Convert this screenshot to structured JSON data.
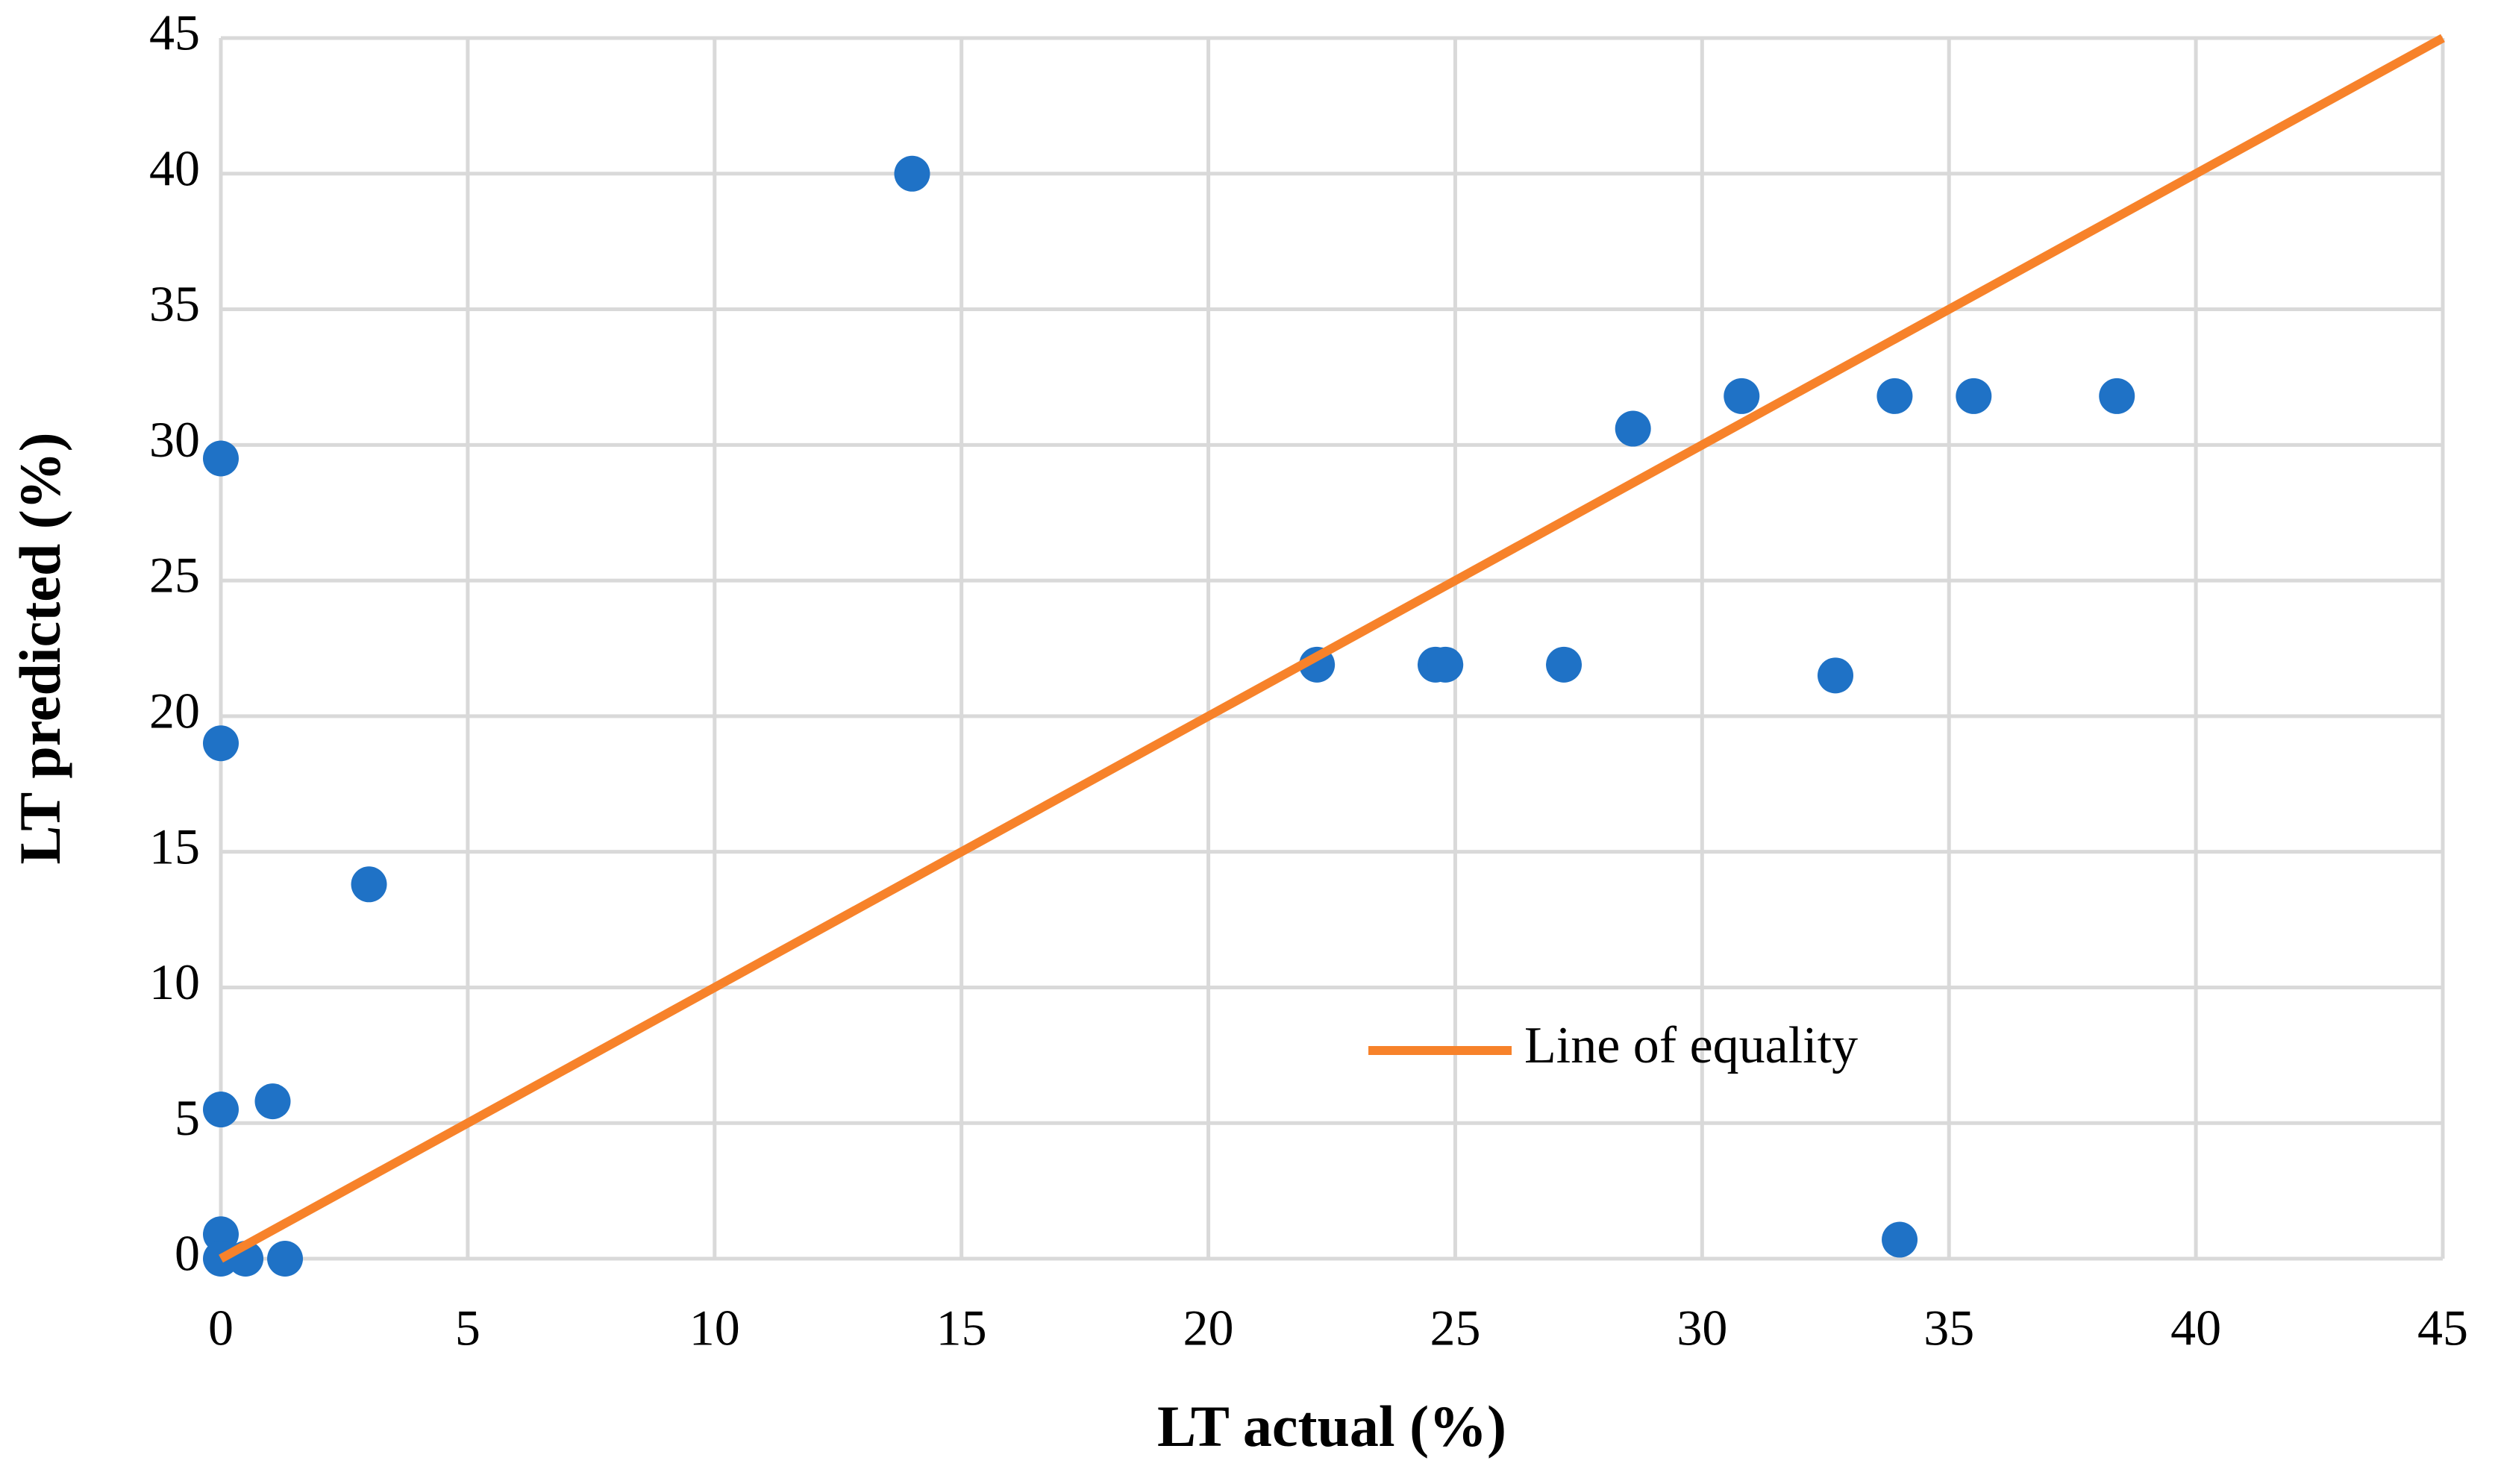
{
  "chart_data": {
    "type": "scatter",
    "x_label": "LT actual (%)",
    "y_label": "LT predicted (%)",
    "xlim": [
      0,
      45
    ],
    "ylim": [
      0,
      45
    ],
    "xticks": [
      0,
      5,
      10,
      15,
      20,
      25,
      30,
      35,
      40,
      45
    ],
    "yticks": [
      0,
      5,
      10,
      15,
      20,
      25,
      30,
      35,
      40,
      45
    ],
    "grid": true,
    "legend": "center-right",
    "series": [
      {
        "type": "scatter",
        "color": "#1f72c6",
        "x": [
          0,
          0,
          0,
          0,
          0,
          0.5,
          1.3,
          1.05,
          3,
          14,
          22.2,
          24.6,
          24.8,
          27.2,
          28.6,
          30.8,
          32.7,
          33.9,
          34,
          35.5,
          38.4
        ],
        "values": [
          29.5,
          19,
          5.5,
          0.9,
          0,
          0,
          0,
          5.8,
          13.8,
          40,
          21.9,
          21.9,
          21.9,
          21.9,
          30.6,
          31.8,
          21.5,
          31.8,
          0.7,
          31.8,
          31.8
        ]
      },
      {
        "type": "line",
        "name": "Line of equality",
        "color": "#f7822a",
        "x": [
          0,
          45
        ],
        "values": [
          0,
          45
        ]
      }
    ]
  }
}
